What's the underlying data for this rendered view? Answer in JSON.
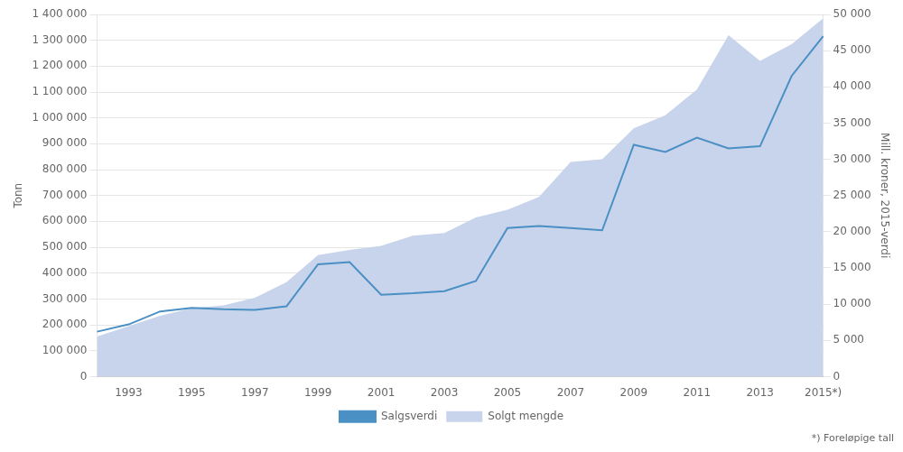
{
  "chart_data": {
    "type": "line",
    "categories": [
      null,
      "1993",
      null,
      "1995",
      null,
      "1997",
      null,
      "1999",
      null,
      "2001",
      null,
      "2003",
      null,
      "2005",
      null,
      "2007",
      null,
      "2009",
      null,
      "2011",
      null,
      "2013",
      null,
      "2015*)"
    ],
    "series": [
      {
        "name": "Solgt mengde",
        "type": "area",
        "color": "#c8d4eb",
        "values": [
          155000,
          195000,
          235000,
          265000,
          275000,
          305000,
          365000,
          470000,
          490000,
          505000,
          545000,
          555000,
          615000,
          645000,
          695000,
          830000,
          840000,
          960000,
          1010000,
          1110000,
          1320000,
          1220000,
          1285000,
          1385000
        ]
      },
      {
        "name": "Salgsverdi",
        "type": "line",
        "color": "#4a90c4",
        "axis": "y2",
        "values": [
          6200,
          7200,
          9000,
          9500,
          9300,
          9200,
          9700,
          15500,
          15800,
          11300,
          11500,
          11800,
          13200,
          20500,
          20800,
          20500,
          20200,
          32000,
          31000,
          33000,
          31500,
          31800,
          41500,
          47000
        ]
      }
    ],
    "ylabel": "Tonn",
    "y2label": "Mill. kroner, 2015-verdi",
    "ylim": [
      0,
      1400000
    ],
    "yticks": [
      0,
      {
        "value": 100000,
        "label": "100 000"
      },
      {
        "value": 200000,
        "label": "200 000"
      },
      {
        "value": 300000,
        "label": "300 000"
      },
      {
        "value": 400000,
        "label": "400 000"
      },
      {
        "value": 500000,
        "label": "500 000"
      },
      {
        "value": 600000,
        "label": "600 000"
      },
      {
        "value": 700000,
        "label": "700 000"
      },
      {
        "value": 800000,
        "label": "800 000"
      },
      {
        "value": 900000,
        "label": "900 000"
      },
      {
        "value": 1000000,
        "label": "1 000 000"
      },
      {
        "value": 1100000,
        "label": "1 100 000"
      },
      {
        "value": 1200000,
        "label": "1 200 000"
      },
      {
        "value": 1300000,
        "label": "1 300 000"
      },
      {
        "value": 1400000,
        "label": "1 400 000"
      }
    ],
    "y2lim": [
      0,
      50000
    ],
    "y2ticks": [
      0,
      {
        "value": 5000,
        "label": "5 000"
      },
      {
        "value": 10000,
        "label": "10 000"
      },
      {
        "value": 15000,
        "label": "15 000"
      },
      {
        "value": 20000,
        "label": "20 000"
      },
      {
        "value": 25000,
        "label": "25 000"
      },
      {
        "value": 30000,
        "label": "30 000"
      },
      {
        "value": 35000,
        "label": "35 000"
      },
      {
        "value": 40000,
        "label": "40 000"
      },
      {
        "value": 45000,
        "label": "45 000"
      },
      {
        "value": 50000,
        "label": "50 000"
      }
    ],
    "grid": true,
    "legend": "bottom",
    "footnote": "*) Foreløpige tall"
  }
}
